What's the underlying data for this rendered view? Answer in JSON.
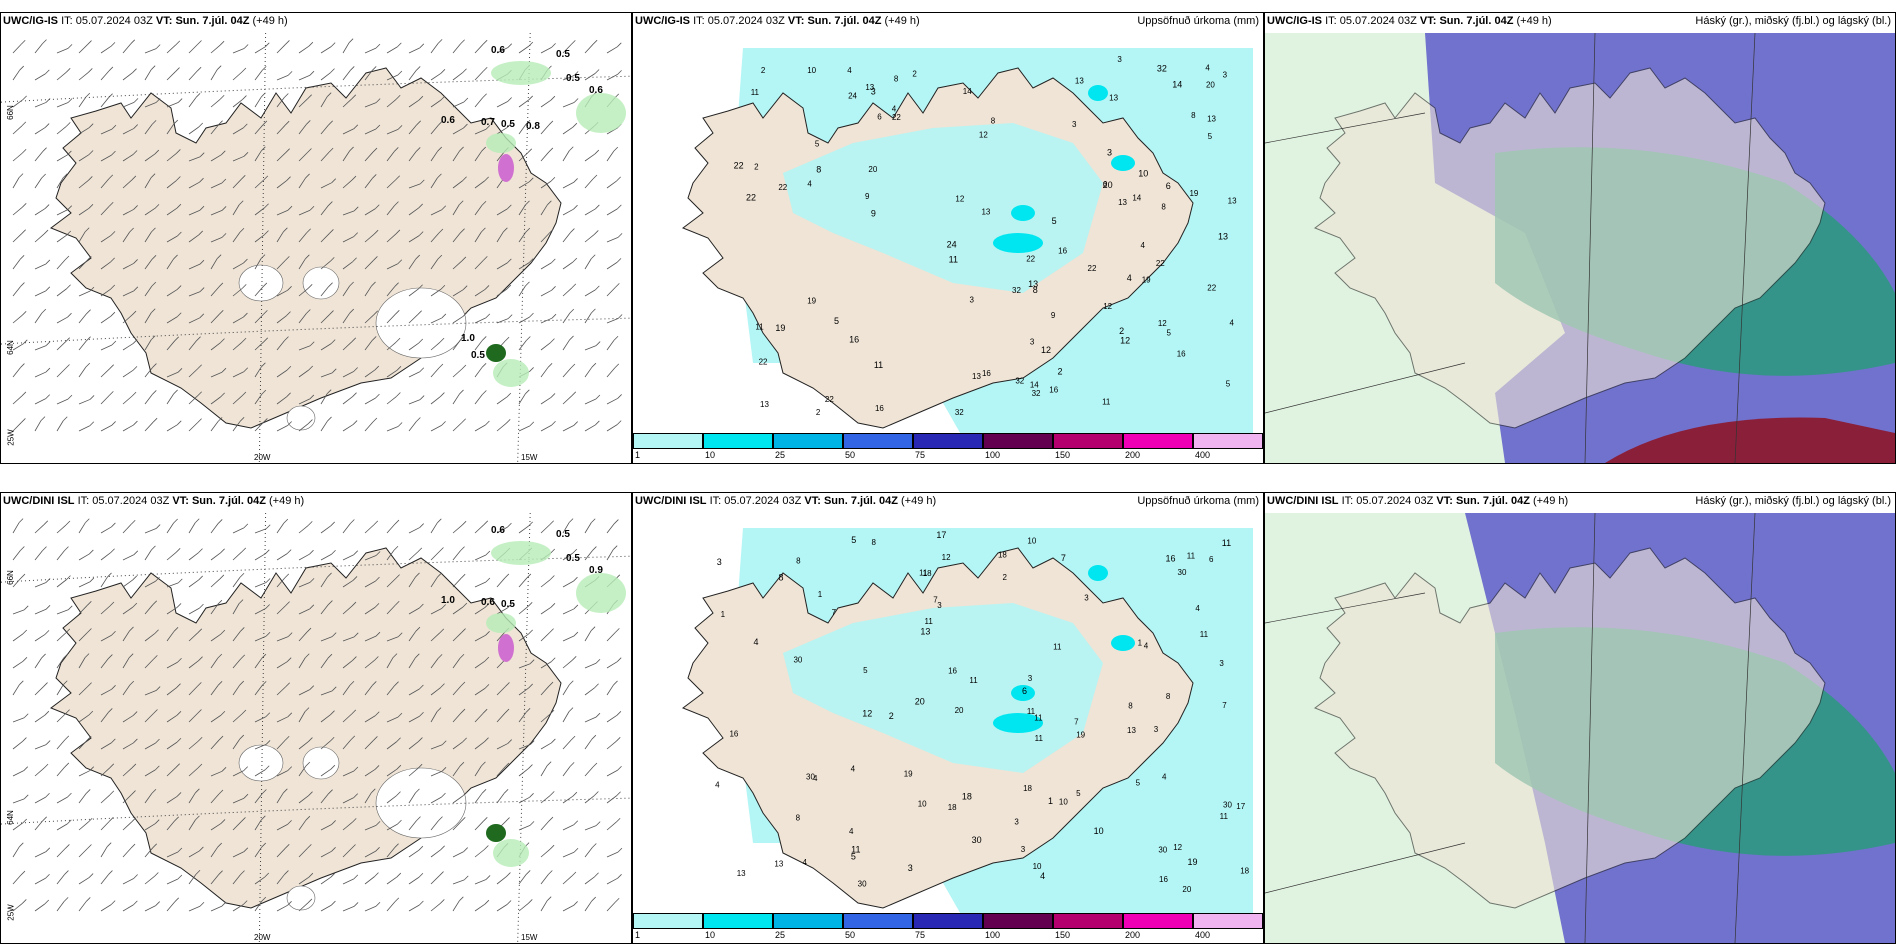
{
  "panels": [
    {
      "model": "UWC/IG-IS",
      "it_label": "IT:",
      "it_value": "05.07.2024 03Z",
      "vt_label": "VT:",
      "vt_value": "Sun. 7.júl. 04Z",
      "lead": "(+49 h)",
      "right_title": ""
    },
    {
      "model": "UWC/IG-IS",
      "it_label": "IT:",
      "it_value": "05.07.2024 03Z",
      "vt_label": "VT:",
      "vt_value": "Sun. 7.júl. 04Z",
      "lead": "(+49 h)",
      "right_title": "Uppsöfnuð úrkoma (mm)"
    },
    {
      "model": "UWC/IG-IS",
      "it_label": "IT:",
      "it_value": "05.07.2024 03Z",
      "vt_label": "VT:",
      "vt_value": "Sun. 7.júl. 04Z",
      "lead": "(+49 h)",
      "right_title": "Háský (gr.), miðský (fj.bl.) og lágský (bl.)"
    },
    {
      "model": "UWC/DINI ISL",
      "it_label": "IT:",
      "it_value": "05.07.2024 03Z",
      "vt_label": "VT:",
      "vt_value": "Sun. 7.júl. 04Z",
      "lead": "(+49 h)",
      "right_title": ""
    },
    {
      "model": "UWC/DINI ISL",
      "it_label": "IT:",
      "it_value": "05.07.2024 03Z",
      "vt_label": "VT:",
      "vt_value": "Sun. 7.júl. 04Z",
      "lead": "(+49 h)",
      "right_title": "Uppsöfnuð úrkoma (mm)"
    },
    {
      "model": "UWC/DINI ISL",
      "it_label": "IT:",
      "it_value": "05.07.2024 03Z",
      "vt_label": "VT:",
      "vt_value": "Sun. 7.júl. 04Z",
      "lead": "(+49 h)",
      "right_title": "Háský (gr.), miðský (fj.bl.) og lágský (bl.)"
    }
  ],
  "axis_labels": {
    "lon_20": "20W",
    "lon_15": "15W",
    "lat_66": "66N",
    "lat_64": "64N",
    "lon_25": "25W"
  },
  "precip_legend": {
    "ticks": [
      "1",
      "10",
      "25",
      "50",
      "75",
      "100",
      "150",
      "200",
      "400"
    ],
    "colors": [
      "#b4f5f5",
      "#00e6f0",
      "#00b4e6",
      "#3264e6",
      "#2828b4",
      "#640050",
      "#b4006e",
      "#f000b4",
      "#f0b4f0"
    ]
  },
  "precip_values_top": [
    "2",
    "3",
    "5",
    "8",
    "10",
    "12",
    "13",
    "9",
    "11",
    "16",
    "19",
    "22",
    "24",
    "13",
    "20",
    "32",
    "22",
    "14",
    "4",
    "6",
    "2",
    "8",
    "11",
    "12",
    "5",
    "3"
  ],
  "precip_values_bottom": [
    "3",
    "4",
    "11",
    "10",
    "5",
    "8",
    "12",
    "19",
    "17",
    "13",
    "16",
    "30",
    "20",
    "18",
    "7",
    "6",
    "4",
    "5",
    "2",
    "3",
    "1",
    "11"
  ],
  "snow_values_top": [
    "0.6",
    "0.5",
    "0.5",
    "0.6",
    "0.6",
    "0.7",
    "0.5",
    "0.8",
    "1.0",
    "0.5"
  ],
  "snow_values_bottom": [
    "0.6",
    "0.5",
    "0.5",
    "0.9",
    "1.0",
    "0.6",
    "0.5"
  ],
  "colors": {
    "land": "#efe4d6",
    "sea_precip": "#b4f5f5",
    "cloud_high": "#6a6acc",
    "cloud_mid": "#2a9a7c",
    "cloud_low": "#a6dca6"
  }
}
